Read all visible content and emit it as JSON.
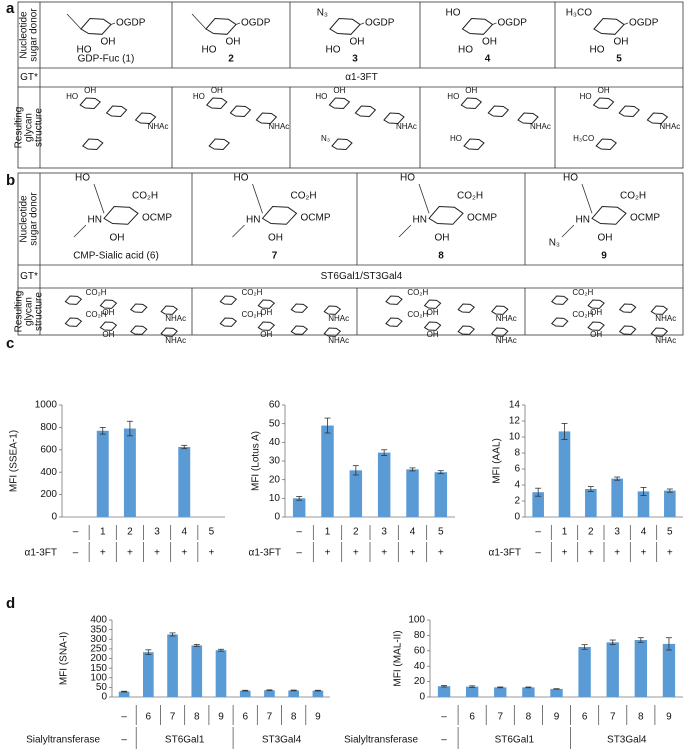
{
  "panels": {
    "a": {
      "label": "a",
      "row_headers": [
        [
          "Nucleotide",
          "sugar donor"
        ],
        [
          "GT*"
        ],
        [
          "Resulting",
          "glycan",
          "structure"
        ]
      ],
      "donors": [
        {
          "name": "GDP-Fuc (1)",
          "atoms": [
            "OGDP",
            "OH",
            "HO"
          ]
        },
        {
          "name": "2",
          "atoms": [
            "OGDP",
            "OH",
            "HO"
          ]
        },
        {
          "name": "3",
          "atoms": [
            "OGDP",
            "OH",
            "HO",
            "N₃"
          ]
        },
        {
          "name": "4",
          "atoms": [
            "OGDP",
            "OH",
            "HO",
            "HO"
          ]
        },
        {
          "name": "5",
          "atoms": [
            "OGDP",
            "OH",
            "HO",
            "H₃CO"
          ]
        }
      ],
      "enzyme": "α1-3FT",
      "glycans": [
        [
          "HO",
          "OH",
          "NHAc"
        ],
        [
          "HO",
          "OH",
          "NHAc"
        ],
        [
          "HO",
          "OH",
          "NHAc",
          "N₃"
        ],
        [
          "HO",
          "OH",
          "NHAc",
          "HO"
        ],
        [
          "HO",
          "OH",
          "NHAc",
          "H₃CO"
        ]
      ]
    },
    "b": {
      "label": "b",
      "row_headers": [
        [
          "Nucleotide",
          "sugar donor"
        ],
        [
          "GT*"
        ],
        [
          "Resulting",
          "glycan",
          "structure"
        ]
      ],
      "donors": [
        {
          "name": "CMP-Sialic acid (6)",
          "atoms": [
            "CO₂H",
            "OCMP",
            "OH",
            "HO",
            "HN"
          ]
        },
        {
          "name": "7",
          "atoms": [
            "CO₂H",
            "OCMP",
            "OH",
            "HO",
            "HN"
          ]
        },
        {
          "name": "8",
          "atoms": [
            "CO₂H",
            "OCMP",
            "OH",
            "HO",
            "HN"
          ]
        },
        {
          "name": "9",
          "atoms": [
            "CO₂H",
            "OCMP",
            "OH",
            "HO",
            "HN",
            "N₃"
          ]
        }
      ],
      "enzyme": "ST6Gal1/ST3Gal4",
      "glycans": [
        [
          [
            "CO₂H",
            "OH",
            "NHAc"
          ],
          [
            "CO₂H",
            "OH",
            "NHAc"
          ]
        ],
        [
          [
            "CO₂H",
            "OH",
            "NHAc"
          ],
          [
            "CO₂H",
            "OH",
            "NHAc"
          ]
        ],
        [
          [
            "CO₂H",
            "OH",
            "NHAc"
          ],
          [
            "CO₂H",
            "OH",
            "NHAc"
          ]
        ],
        [
          [
            "CO₂H",
            "OH",
            "NHAc"
          ],
          [
            "CO₂H",
            "OH",
            "NHAc"
          ]
        ]
      ]
    },
    "c": {
      "label": "c"
    },
    "d": {
      "label": "d"
    }
  },
  "chart_data": [
    {
      "type": "bar",
      "ylabel": "MFI (SSEA-1)",
      "categories": [
        "–",
        "1",
        "2",
        "3",
        "4",
        "5"
      ],
      "treatment_label": "α1-3FT",
      "treatment": [
        "–",
        "+",
        "+",
        "+",
        "+",
        "+"
      ],
      "group_treatments": false,
      "values": [
        0,
        770,
        790,
        0,
        625,
        0
      ],
      "errors": [
        null,
        30,
        65,
        null,
        15,
        null
      ],
      "color": "#5b9bd5",
      "ylim": [
        0,
        1000
      ],
      "yticks": [
        0,
        200,
        400,
        600,
        800,
        1000
      ]
    },
    {
      "type": "bar",
      "ylabel": "MFI (Lotus A)",
      "categories": [
        "–",
        "1",
        "2",
        "3",
        "4",
        "5"
      ],
      "treatment_label": "α1-3FT",
      "treatment": [
        "–",
        "+",
        "+",
        "+",
        "+",
        "+"
      ],
      "group_treatments": false,
      "values": [
        10,
        49,
        25,
        34.5,
        25.5,
        24
      ],
      "errors": [
        1,
        4,
        2.5,
        1.5,
        0.8,
        0.8
      ],
      "color": "#5b9bd5",
      "ylim": [
        0,
        60
      ],
      "yticks": [
        0,
        10,
        20,
        30,
        40,
        50,
        60
      ]
    },
    {
      "type": "bar",
      "ylabel": "MFI (AAL)",
      "categories": [
        "–",
        "1",
        "2",
        "3",
        "4",
        "5"
      ],
      "treatment_label": "α1-3FT",
      "treatment": [
        "–",
        "+",
        "+",
        "+",
        "+",
        "+"
      ],
      "group_treatments": false,
      "values": [
        3.1,
        10.7,
        3.5,
        4.8,
        3.2,
        3.3
      ],
      "errors": [
        0.5,
        1,
        0.3,
        0.2,
        0.5,
        0.2
      ],
      "color": "#5b9bd5",
      "ylim": [
        0,
        14
      ],
      "yticks": [
        0,
        2,
        4,
        6,
        8,
        10,
        12,
        14
      ]
    },
    {
      "type": "bar",
      "ylabel": "MFI (SNA-I)",
      "categories": [
        "–",
        "6",
        "7",
        "8",
        "9",
        "6",
        "7",
        "8",
        "9"
      ],
      "treatment_label": "Sialyltransferase",
      "treatment": [
        "–",
        "ST6Gal1",
        "ST6Gal1",
        "ST6Gal1",
        "ST6Gal1",
        "ST3Gal4",
        "ST3Gal4",
        "ST3Gal4",
        "ST3Gal4"
      ],
      "group_treatments": true,
      "values": [
        28,
        233,
        325,
        268,
        243,
        33,
        35,
        34,
        33
      ],
      "errors": [
        2,
        12,
        8,
        5,
        5,
        2,
        2,
        2,
        2
      ],
      "color": "#5b9bd5",
      "ylim": [
        0,
        400
      ],
      "yticks": [
        0,
        50,
        100,
        150,
        200,
        250,
        300,
        350,
        400
      ]
    },
    {
      "type": "bar",
      "ylabel": "MFI (MAL-II)",
      "categories": [
        "–",
        "6",
        "7",
        "8",
        "9",
        "6",
        "7",
        "8",
        "9"
      ],
      "treatment_label": "Sialyltransferase",
      "treatment": [
        "–",
        "ST6Gal1",
        "ST6Gal1",
        "ST6Gal1",
        "ST6Gal1",
        "ST3Gal4",
        "ST3Gal4",
        "ST3Gal4",
        "ST3Gal4"
      ],
      "group_treatments": true,
      "values": [
        14,
        13.5,
        12.5,
        12.5,
        10.5,
        65,
        71,
        74,
        69
      ],
      "errors": [
        1,
        1,
        0.5,
        0.5,
        0.3,
        3,
        3,
        3,
        8
      ],
      "color": "#5b9bd5",
      "ylim": [
        0,
        100
      ],
      "yticks": [
        0,
        20,
        40,
        60,
        80,
        100
      ]
    }
  ]
}
